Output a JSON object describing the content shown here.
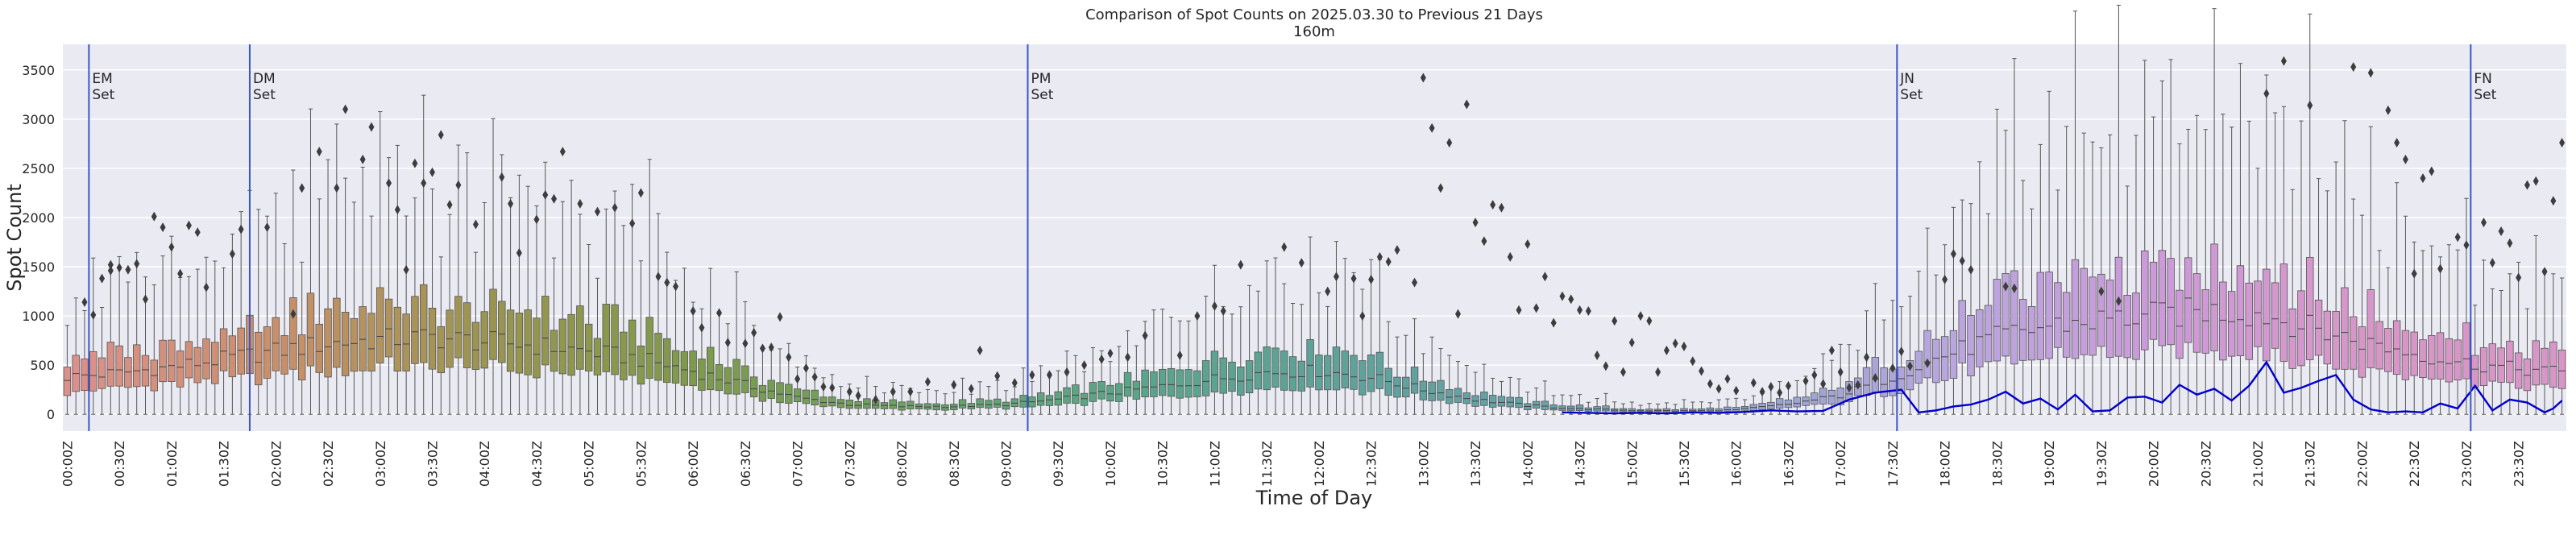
{
  "chart_data": {
    "type": "box",
    "title_line1": "Comparison of Spot Counts on 2025.03.30 to Previous 21 Days",
    "title_line2": "160m",
    "xlabel": "Time of Day",
    "ylabel": "Spot Count",
    "ylim": [
      -170,
      3760
    ],
    "yticks": [
      0,
      500,
      1000,
      1500,
      2000,
      2500,
      3000,
      3500
    ],
    "grid": true,
    "slot_count": 288,
    "xtick_labels": [
      "00:00Z",
      "00:30Z",
      "01:00Z",
      "01:30Z",
      "02:00Z",
      "02:30Z",
      "03:00Z",
      "03:30Z",
      "04:00Z",
      "04:30Z",
      "05:00Z",
      "05:30Z",
      "06:00Z",
      "06:30Z",
      "07:00Z",
      "07:30Z",
      "08:00Z",
      "08:30Z",
      "09:00Z",
      "09:30Z",
      "10:00Z",
      "10:30Z",
      "11:00Z",
      "11:30Z",
      "12:00Z",
      "12:30Z",
      "13:00Z",
      "13:30Z",
      "14:00Z",
      "14:30Z",
      "15:00Z",
      "15:30Z",
      "16:00Z",
      "16:30Z",
      "17:00Z",
      "17:30Z",
      "18:00Z",
      "18:30Z",
      "19:00Z",
      "19:30Z",
      "20:00Z",
      "20:30Z",
      "21:00Z",
      "21:30Z",
      "22:00Z",
      "22:30Z",
      "23:00Z",
      "23:30Z"
    ],
    "markers": [
      {
        "line1": "EM",
        "line2": "Set",
        "slot": 2.5
      },
      {
        "line1": "DM",
        "line2": "Set",
        "slot": 21
      },
      {
        "line1": "PM",
        "line2": "Set",
        "slot": 110.5
      },
      {
        "line1": "JN",
        "line2": "Set",
        "slot": 210.5
      },
      {
        "line1": "FN",
        "line2": "Set",
        "slot": 276.5
      }
    ],
    "median_profile": [
      [
        0,
        380
      ],
      [
        6,
        420
      ],
      [
        12,
        480
      ],
      [
        18,
        560
      ],
      [
        24,
        640
      ],
      [
        30,
        720
      ],
      [
        36,
        760
      ],
      [
        42,
        780
      ],
      [
        48,
        740
      ],
      [
        54,
        700
      ],
      [
        60,
        640
      ],
      [
        66,
        560
      ],
      [
        72,
        440
      ],
      [
        78,
        300
      ],
      [
        84,
        170
      ],
      [
        90,
        100
      ],
      [
        96,
        80
      ],
      [
        102,
        80
      ],
      [
        108,
        100
      ],
      [
        114,
        150
      ],
      [
        120,
        220
      ],
      [
        126,
        280
      ],
      [
        132,
        360
      ],
      [
        138,
        430
      ],
      [
        144,
        440
      ],
      [
        150,
        380
      ],
      [
        156,
        250
      ],
      [
        162,
        150
      ],
      [
        168,
        90
      ],
      [
        174,
        55
      ],
      [
        180,
        40
      ],
      [
        186,
        35
      ],
      [
        192,
        45
      ],
      [
        198,
        100
      ],
      [
        204,
        190
      ],
      [
        210,
        380
      ],
      [
        216,
        600
      ],
      [
        222,
        780
      ],
      [
        228,
        900
      ],
      [
        234,
        960
      ],
      [
        240,
        1000
      ],
      [
        246,
        1050
      ],
      [
        252,
        1030
      ],
      [
        258,
        880
      ],
      [
        264,
        740
      ],
      [
        270,
        620
      ],
      [
        276,
        520
      ],
      [
        282,
        460
      ],
      [
        287,
        430
      ]
    ],
    "current_series": {
      "color": "#0000cc",
      "points": [
        [
          172,
          20
        ],
        [
          175,
          15
        ],
        [
          178,
          10
        ],
        [
          181,
          15
        ],
        [
          184,
          10
        ],
        [
          187,
          20
        ],
        [
          190,
          15
        ],
        [
          193,
          25
        ],
        [
          196,
          40
        ],
        [
          199,
          30
        ],
        [
          202,
          35
        ],
        [
          205,
          150
        ],
        [
          208,
          220
        ],
        [
          211,
          250
        ],
        [
          213,
          20
        ],
        [
          215,
          40
        ],
        [
          217,
          80
        ],
        [
          219,
          100
        ],
        [
          221,
          150
        ],
        [
          223,
          230
        ],
        [
          225,
          110
        ],
        [
          227,
          160
        ],
        [
          229,
          50
        ],
        [
          231,
          200
        ],
        [
          233,
          30
        ],
        [
          235,
          40
        ],
        [
          237,
          170
        ],
        [
          239,
          180
        ],
        [
          241,
          120
        ],
        [
          243,
          300
        ],
        [
          245,
          200
        ],
        [
          247,
          260
        ],
        [
          249,
          140
        ],
        [
          251,
          290
        ],
        [
          253,
          530
        ],
        [
          255,
          220
        ],
        [
          257,
          270
        ],
        [
          259,
          340
        ],
        [
          261,
          400
        ],
        [
          263,
          150
        ],
        [
          265,
          50
        ],
        [
          267,
          20
        ],
        [
          269,
          30
        ],
        [
          271,
          20
        ],
        [
          273,
          110
        ],
        [
          275,
          60
        ],
        [
          277,
          290
        ],
        [
          279,
          40
        ],
        [
          281,
          150
        ],
        [
          283,
          120
        ],
        [
          285,
          20
        ],
        [
          286,
          60
        ],
        [
          287,
          140
        ]
      ]
    },
    "outliers": [
      [
        2,
        1140
      ],
      [
        3,
        1010
      ],
      [
        4,
        1380
      ],
      [
        5,
        1520
      ],
      [
        5,
        1460
      ],
      [
        6,
        1490
      ],
      [
        7,
        1470
      ],
      [
        8,
        1530
      ],
      [
        9,
        1170
      ],
      [
        10,
        2010
      ],
      [
        11,
        1900
      ],
      [
        12,
        1700
      ],
      [
        13,
        1430
      ],
      [
        14,
        1920
      ],
      [
        15,
        1850
      ],
      [
        16,
        1290
      ],
      [
        19,
        1630
      ],
      [
        20,
        1880
      ],
      [
        23,
        1900
      ],
      [
        26,
        1020
      ],
      [
        27,
        2300
      ],
      [
        29,
        2670
      ],
      [
        31,
        2300
      ],
      [
        32,
        3100
      ],
      [
        34,
        2590
      ],
      [
        35,
        2920
      ],
      [
        37,
        2350
      ],
      [
        38,
        2080
      ],
      [
        39,
        1470
      ],
      [
        40,
        2550
      ],
      [
        41,
        2350
      ],
      [
        42,
        2460
      ],
      [
        43,
        2840
      ],
      [
        44,
        2130
      ],
      [
        45,
        2330
      ],
      [
        47,
        1930
      ],
      [
        50,
        2410
      ],
      [
        51,
        2140
      ],
      [
        52,
        1640
      ],
      [
        54,
        1980
      ],
      [
        55,
        2230
      ],
      [
        56,
        2190
      ],
      [
        57,
        2670
      ],
      [
        59,
        2140
      ],
      [
        61,
        2060
      ],
      [
        63,
        2100
      ],
      [
        65,
        1940
      ],
      [
        66,
        2250
      ],
      [
        68,
        1400
      ],
      [
        69,
        1340
      ],
      [
        70,
        1300
      ],
      [
        72,
        1050
      ],
      [
        73,
        880
      ],
      [
        75,
        1030
      ],
      [
        76,
        730
      ],
      [
        78,
        720
      ],
      [
        79,
        830
      ],
      [
        80,
        670
      ],
      [
        81,
        680
      ],
      [
        82,
        990
      ],
      [
        83,
        580
      ],
      [
        84,
        360
      ],
      [
        85,
        470
      ],
      [
        86,
        380
      ],
      [
        87,
        280
      ],
      [
        88,
        270
      ],
      [
        90,
        230
      ],
      [
        91,
        190
      ],
      [
        93,
        150
      ],
      [
        95,
        230
      ],
      [
        97,
        230
      ],
      [
        99,
        330
      ],
      [
        102,
        300
      ],
      [
        104,
        260
      ],
      [
        105,
        650
      ],
      [
        107,
        390
      ],
      [
        109,
        320
      ],
      [
        111,
        400
      ],
      [
        113,
        400
      ],
      [
        115,
        430
      ],
      [
        117,
        500
      ],
      [
        119,
        560
      ],
      [
        120,
        620
      ],
      [
        122,
        580
      ],
      [
        124,
        800
      ],
      [
        128,
        600
      ],
      [
        130,
        1000
      ],
      [
        132,
        1100
      ],
      [
        133,
        1050
      ],
      [
        135,
        1520
      ],
      [
        140,
        1700
      ],
      [
        142,
        1540
      ],
      [
        145,
        1250
      ],
      [
        146,
        1400
      ],
      [
        148,
        1380
      ],
      [
        149,
        1000
      ],
      [
        150,
        1370
      ],
      [
        151,
        1600
      ],
      [
        152,
        1550
      ],
      [
        153,
        1670
      ],
      [
        155,
        1340
      ],
      [
        156,
        3420
      ],
      [
        157,
        2910
      ],
      [
        158,
        2300
      ],
      [
        159,
        2760
      ],
      [
        160,
        1020
      ],
      [
        161,
        3150
      ],
      [
        162,
        1950
      ],
      [
        163,
        1760
      ],
      [
        164,
        2130
      ],
      [
        165,
        2100
      ],
      [
        166,
        1600
      ],
      [
        167,
        1060
      ],
      [
        168,
        1730
      ],
      [
        169,
        1080
      ],
      [
        170,
        1400
      ],
      [
        171,
        930
      ],
      [
        172,
        1200
      ],
      [
        173,
        1170
      ],
      [
        174,
        1060
      ],
      [
        175,
        1050
      ],
      [
        176,
        600
      ],
      [
        177,
        490
      ],
      [
        178,
        950
      ],
      [
        179,
        430
      ],
      [
        180,
        730
      ],
      [
        181,
        1000
      ],
      [
        182,
        950
      ],
      [
        183,
        430
      ],
      [
        184,
        650
      ],
      [
        185,
        720
      ],
      [
        186,
        690
      ],
      [
        187,
        540
      ],
      [
        188,
        440
      ],
      [
        189,
        310
      ],
      [
        190,
        260
      ],
      [
        191,
        360
      ],
      [
        192,
        240
      ],
      [
        194,
        320
      ],
      [
        195,
        230
      ],
      [
        196,
        280
      ],
      [
        197,
        220
      ],
      [
        198,
        290
      ],
      [
        200,
        340
      ],
      [
        201,
        400
      ],
      [
        202,
        310
      ],
      [
        203,
        650
      ],
      [
        204,
        430
      ],
      [
        205,
        270
      ],
      [
        206,
        300
      ],
      [
        207,
        580
      ],
      [
        208,
        370
      ],
      [
        210,
        470
      ],
      [
        211,
        640
      ],
      [
        212,
        490
      ],
      [
        214,
        520
      ],
      [
        216,
        1370
      ],
      [
        217,
        1630
      ],
      [
        218,
        1560
      ],
      [
        219,
        1470
      ],
      [
        223,
        1300
      ],
      [
        224,
        1280
      ],
      [
        234,
        1250
      ],
      [
        236,
        1150
      ],
      [
        253,
        3260
      ],
      [
        255,
        3590
      ],
      [
        258,
        3140
      ],
      [
        263,
        3530
      ],
      [
        265,
        3470
      ],
      [
        267,
        3090
      ],
      [
        268,
        2760
      ],
      [
        269,
        2590
      ],
      [
        270,
        1430
      ],
      [
        271,
        2400
      ],
      [
        272,
        2470
      ],
      [
        273,
        1480
      ],
      [
        275,
        1800
      ],
      [
        276,
        1720
      ],
      [
        278,
        1950
      ],
      [
        279,
        1540
      ],
      [
        280,
        1860
      ],
      [
        281,
        1740
      ],
      [
        282,
        1390
      ],
      [
        283,
        2330
      ],
      [
        284,
        2370
      ],
      [
        285,
        1450
      ],
      [
        286,
        2170
      ],
      [
        287,
        2760
      ]
    ]
  }
}
